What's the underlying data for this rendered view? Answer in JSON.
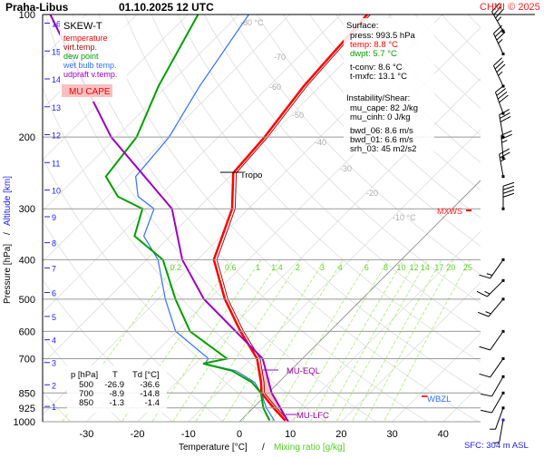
{
  "header": {
    "station": "Praha-Libus",
    "datetime": "01.10.2025 12 UTC",
    "copyright": "CHMI © 2025"
  },
  "legend": {
    "title": "SKEW-T",
    "items": [
      {
        "label": "temperature",
        "color": "#ff0000"
      },
      {
        "label": "virt.temp.",
        "color": "#a01010"
      },
      {
        "label": "dew point",
        "color": "#00a000"
      },
      {
        "label": "wet bulb temp.",
        "color": "#3070ff"
      },
      {
        "label": "udpraft v.temp.",
        "color": "#a000c0"
      }
    ],
    "cape_label": "MU CAPE"
  },
  "surface": {
    "title": "Surface:",
    "press": "press: 993.5 hPa",
    "temp": "temp: 8.8 °C",
    "dwpt": "dwpt: 5.7 °C",
    "tconv": "t-conv: 8.6 °C",
    "tmxfc": "t-mxfc: 13.1 °C"
  },
  "instability": {
    "title": "Instability/Shear:",
    "mu_cape": "mu_cape: 82 J/kg",
    "mu_cinh": "mu_cinh: 0 J/kg",
    "bwd_06": "bwd_06: 8.6 m/s",
    "bwd_01": "bwd_01: 6.6 m/s",
    "srh_03": "srh_03: 45 m2/s2"
  },
  "table": {
    "headers": [
      "p [hPa]",
      "T",
      "Td [°C]"
    ],
    "rows": [
      [
        "500",
        "-26.9",
        "-36.6"
      ],
      [
        "700",
        "-8.9",
        "-14.8"
      ],
      [
        "850",
        "-1.3",
        "-1.4"
      ]
    ]
  },
  "annotations": {
    "tropo": "Tropo",
    "mxws": "MXWS",
    "wbzl": "WBZL",
    "mu_eql": "MU-EQL",
    "mu_lfc": "MU-LFC",
    "sfc": "SFC: 304 m ASL"
  },
  "chart_data": {
    "type": "line",
    "subtype": "skew-t log-p",
    "xlabel": "Temperature [°C]",
    "xlabel_sep": "/",
    "xlabel2": "Mixing ratio [g/kg]",
    "ylabel": "Pressure [hPa]",
    "ylabel_sep": "/",
    "ylabel2": "Altitude [km]",
    "xlim": [
      -38,
      48
    ],
    "ylim": [
      1000,
      100
    ],
    "x_ticks": [
      "-30",
      "-20",
      "-10",
      "0",
      "10",
      "20",
      "30",
      "40"
    ],
    "y_ticks": [
      "100",
      "200",
      "300",
      "400",
      "500",
      "600",
      "700",
      "850",
      "925",
      "1000"
    ],
    "altitude_ticks_km": [
      "1",
      "2",
      "3",
      "4",
      "5",
      "6",
      "7",
      "8",
      "9",
      "10",
      "11",
      "12",
      "13",
      "14",
      "15",
      "16"
    ],
    "isotherm_labels": [
      "-80 °C",
      "-70",
      "-60",
      "-50",
      "-40",
      "-30",
      "-20",
      "-10 °C"
    ],
    "mixing_ratio_labels": [
      "0.2",
      "0.6",
      "1",
      "1.4",
      "2",
      "3",
      "4",
      "6",
      "8",
      "10",
      "12",
      "14",
      "17",
      "20",
      "25"
    ],
    "series": [
      {
        "name": "temperature",
        "p": [
          993.5,
          925,
          850,
          800,
          700,
          600,
          500,
          400,
          300,
          245,
          200,
          150,
          100
        ],
        "t": [
          8.8,
          4.0,
          -1.3,
          -3.5,
          -8.9,
          -17.5,
          -26.9,
          -36.8,
          -43.2,
          -50,
          -50.9,
          -53.2,
          -54.8
        ]
      },
      {
        "name": "dew point",
        "p": [
          993.5,
          925,
          850,
          800,
          750,
          720,
          700,
          600,
          500,
          400,
          350,
          300,
          280,
          250,
          200,
          150,
          100
        ],
        "t": [
          5.7,
          2.0,
          -1.4,
          -5.3,
          -11.4,
          -18.5,
          -14.8,
          -27.4,
          -36.6,
          -46.8,
          -57,
          -60.8,
          -68,
          -74.3,
          -76,
          -81.7,
          -88
        ]
      },
      {
        "name": "updraft v.temp.",
        "p": [
          1000,
          850,
          700,
          500,
          400,
          300,
          200,
          150,
          100
        ],
        "t": [
          9.6,
          0.7,
          -7.8,
          -31,
          -43,
          -55,
          -81,
          -96,
          -117
        ]
      }
    ],
    "wind_barbs": [
      {
        "p": 110,
        "dir": 330,
        "kt": 35
      },
      {
        "p": 125,
        "dir": 335,
        "kt": 35
      },
      {
        "p": 150,
        "dir": 335,
        "kt": 35
      },
      {
        "p": 175,
        "dir": 340,
        "kt": 40
      },
      {
        "p": 200,
        "dir": 350,
        "kt": 30
      },
      {
        "p": 225,
        "dir": 355,
        "kt": 25
      },
      {
        "p": 250,
        "dir": 350,
        "kt": 25
      },
      {
        "p": 300,
        "dir": 0,
        "kt": 40
      },
      {
        "p": 400,
        "dir": 215,
        "kt": 15
      },
      {
        "p": 450,
        "dir": 225,
        "kt": 15
      },
      {
        "p": 500,
        "dir": 220,
        "kt": 15
      },
      {
        "p": 600,
        "dir": 215,
        "kt": 10
      },
      {
        "p": 700,
        "dir": 215,
        "kt": 10
      },
      {
        "p": 775,
        "dir": 210,
        "kt": 10
      },
      {
        "p": 850,
        "dir": 210,
        "kt": 10
      },
      {
        "p": 925,
        "dir": 200,
        "kt": 5
      },
      {
        "p": 990,
        "dir": 190,
        "kt": 5
      }
    ]
  }
}
